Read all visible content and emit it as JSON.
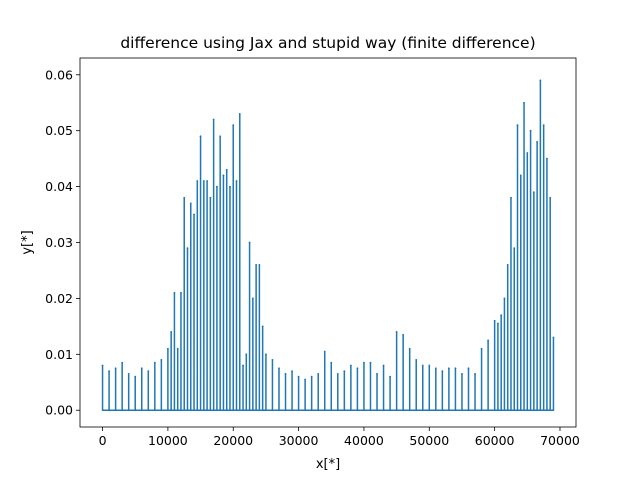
{
  "chart_data": {
    "type": "line",
    "title": "difference using Jax and stupid way (finite difference)",
    "xlabel": "x[*]",
    "ylabel": "y[*]",
    "xlim": [
      -3450,
      72450
    ],
    "ylim": [
      -0.003,
      0.063
    ],
    "x_ticks": [
      0,
      10000,
      20000,
      30000,
      40000,
      50000,
      60000,
      70000
    ],
    "x_tick_labels": [
      "0",
      "10000",
      "20000",
      "30000",
      "40000",
      "50000",
      "60000",
      "70000"
    ],
    "y_ticks": [
      0.0,
      0.01,
      0.02,
      0.03,
      0.04,
      0.05,
      0.06
    ],
    "y_tick_labels": [
      "0.00",
      "0.01",
      "0.02",
      "0.03",
      "0.04",
      "0.05",
      "0.06"
    ],
    "grid": false,
    "line_color": "#1f77b4",
    "series": [
      {
        "x": [
          0,
          1000,
          2000,
          3000,
          4000,
          5000,
          6000,
          7000,
          8000,
          9000,
          10000,
          10500,
          11000,
          11500,
          12000,
          12500,
          13000,
          13500,
          14000,
          14500,
          15000,
          15500,
          16000,
          16500,
          17000,
          17500,
          18000,
          18500,
          19000,
          19500,
          20000,
          20500,
          21000,
          21500,
          22000,
          22500,
          23000,
          23500,
          24000,
          24500,
          25000,
          26000,
          27000,
          28000,
          29000,
          30000,
          31000,
          32000,
          33000,
          34000,
          35000,
          36000,
          37000,
          38000,
          39000,
          40000,
          41000,
          42000,
          43000,
          44000,
          45000,
          46000,
          47000,
          48000,
          49000,
          50000,
          51000,
          52000,
          53000,
          54000,
          55000,
          56000,
          57000,
          58000,
          59000,
          60000,
          60500,
          61000,
          61500,
          62000,
          62500,
          63000,
          63500,
          64000,
          64500,
          65000,
          65500,
          66000,
          66500,
          67000,
          67500,
          68000,
          68500,
          69000
        ],
        "y": [
          0.008,
          0.007,
          0.0075,
          0.0085,
          0.0065,
          0.006,
          0.0075,
          0.007,
          0.0085,
          0.009,
          0.011,
          0.014,
          0.021,
          0.011,
          0.021,
          0.038,
          0.029,
          0.037,
          0.035,
          0.041,
          0.049,
          0.041,
          0.041,
          0.038,
          0.052,
          0.04,
          0.049,
          0.042,
          0.043,
          0.04,
          0.051,
          0.041,
          0.053,
          0.008,
          0.01,
          0.03,
          0.02,
          0.026,
          0.026,
          0.015,
          0.01,
          0.009,
          0.0075,
          0.0065,
          0.007,
          0.006,
          0.0055,
          0.006,
          0.0065,
          0.0105,
          0.0085,
          0.0065,
          0.007,
          0.008,
          0.0075,
          0.0085,
          0.0085,
          0.0065,
          0.008,
          0.006,
          0.014,
          0.0135,
          0.011,
          0.009,
          0.008,
          0.008,
          0.0075,
          0.007,
          0.0075,
          0.0075,
          0.0065,
          0.0075,
          0.0065,
          0.011,
          0.0125,
          0.016,
          0.0155,
          0.017,
          0.02,
          0.026,
          0.038,
          0.029,
          0.051,
          0.042,
          0.055,
          0.046,
          0.05,
          0.039,
          0.048,
          0.059,
          0.051,
          0.045,
          0.038,
          0.013
        ]
      }
    ]
  }
}
